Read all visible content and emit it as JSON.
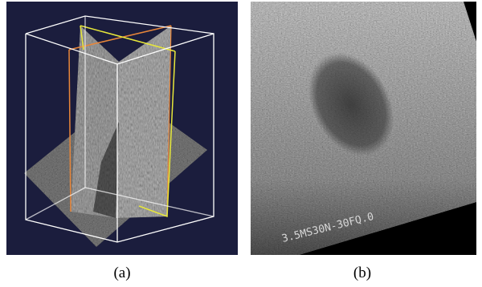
{
  "figure": {
    "panels": [
      {
        "id": "a",
        "caption": "(a)",
        "background_color": "#1b1d3d",
        "box_color": "#ffffff",
        "plane_edge_colors": [
          "#e8863a",
          "#e8e83a"
        ]
      },
      {
        "id": "b",
        "caption": "(b)",
        "overlay_text": "3.5MS30N-30FQ.0"
      }
    ]
  }
}
